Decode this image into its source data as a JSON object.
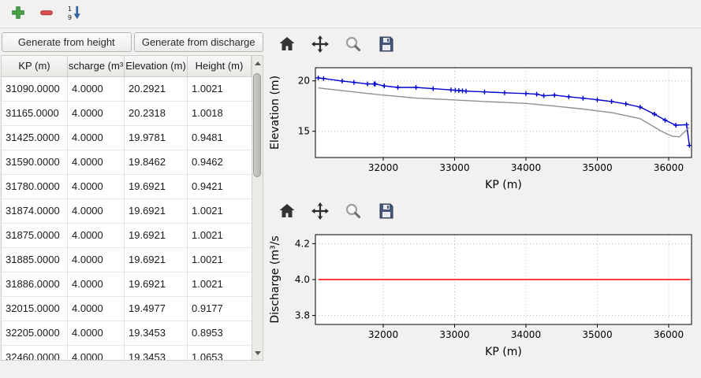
{
  "toolbar": {
    "add_icon": "plus-icon",
    "remove_icon": "minus-icon",
    "sort_icon": "sort-ascending-icon",
    "sort_digits": [
      "1",
      "9"
    ]
  },
  "buttons": {
    "generate_height": "Generate from height",
    "generate_discharge": "Generate from discharge"
  },
  "table": {
    "columns": [
      "KP (m)",
      "scharge (m³",
      "Elevation (m)",
      "Height (m)"
    ],
    "rows": [
      [
        "31090.0000",
        "4.0000",
        "20.2921",
        "1.0021"
      ],
      [
        "31165.0000",
        "4.0000",
        "20.2318",
        "1.0018"
      ],
      [
        "31425.0000",
        "4.0000",
        "19.9781",
        "0.9481"
      ],
      [
        "31590.0000",
        "4.0000",
        "19.8462",
        "0.9462"
      ],
      [
        "31780.0000",
        "4.0000",
        "19.6921",
        "0.9421"
      ],
      [
        "31874.0000",
        "4.0000",
        "19.6921",
        "1.0021"
      ],
      [
        "31875.0000",
        "4.0000",
        "19.6921",
        "1.0021"
      ],
      [
        "31885.0000",
        "4.0000",
        "19.6921",
        "1.0021"
      ],
      [
        "31886.0000",
        "4.0000",
        "19.6921",
        "1.0021"
      ],
      [
        "32015.0000",
        "4.0000",
        "19.4977",
        "0.9177"
      ],
      [
        "32205.0000",
        "4.0000",
        "19.3453",
        "0.8953"
      ],
      [
        "32460.0000",
        "4.0000",
        "19.3453",
        "1.0653"
      ]
    ]
  },
  "plot_toolbar": {
    "icons": [
      "home-icon",
      "pan-icon",
      "zoom-icon",
      "save-icon"
    ]
  },
  "chart_data": [
    {
      "type": "line",
      "title": "",
      "xlabel": "KP (m)",
      "ylabel": "Elevation (m)",
      "xlim": [
        31050,
        36320
      ],
      "ylim": [
        12.4,
        21.3
      ],
      "x_ticks": [
        32000,
        33000,
        34000,
        35000,
        36000
      ],
      "x_tick_labels": [
        "32000",
        "33000",
        "34000",
        "35000",
        "36000"
      ],
      "y_ticks": [
        15,
        20
      ],
      "y_tick_labels": [
        "15",
        "20"
      ],
      "grid": true,
      "legend": "none",
      "series": [
        {
          "name": "water-surface-elevation",
          "color": "#0000cc",
          "marker": "plus",
          "x": [
            31090,
            31165,
            31425,
            31590,
            31780,
            31874,
            31875,
            31885,
            31886,
            32015,
            32205,
            32460,
            32700,
            32950,
            33010,
            33060,
            33110,
            33160,
            33420,
            33700,
            34000,
            34150,
            34250,
            34400,
            34600,
            34800,
            35000,
            35200,
            35400,
            35600,
            35800,
            35950,
            36100,
            36250,
            36290
          ],
          "y": [
            20.29,
            20.23,
            19.98,
            19.85,
            19.69,
            19.69,
            19.69,
            19.69,
            19.69,
            19.5,
            19.35,
            19.35,
            19.22,
            19.1,
            19.07,
            19.04,
            19.01,
            18.98,
            18.9,
            18.82,
            18.74,
            18.68,
            18.52,
            18.58,
            18.42,
            18.28,
            18.12,
            17.95,
            17.72,
            17.4,
            16.7,
            16.1,
            15.6,
            15.65,
            13.6
          ]
        },
        {
          "name": "bed-elevation",
          "color": "#909090",
          "marker": "none",
          "x": [
            31090,
            31425,
            31780,
            32015,
            32460,
            32950,
            33420,
            34000,
            34400,
            34800,
            35200,
            35600,
            35900,
            36050,
            36150,
            36290
          ],
          "y": [
            19.29,
            19.03,
            18.75,
            18.58,
            18.29,
            18.12,
            17.95,
            17.76,
            17.5,
            17.2,
            16.85,
            16.25,
            15.0,
            14.5,
            14.45,
            15.4
          ]
        }
      ]
    },
    {
      "type": "line",
      "title": "",
      "xlabel": "KP (m)",
      "ylabel": "Discharge (m³/s",
      "xlim": [
        31050,
        36320
      ],
      "ylim": [
        3.75,
        4.25
      ],
      "x_ticks": [
        32000,
        33000,
        34000,
        35000,
        36000
      ],
      "x_tick_labels": [
        "32000",
        "33000",
        "34000",
        "35000",
        "36000"
      ],
      "y_ticks": [
        3.8,
        4.0,
        4.2
      ],
      "y_tick_labels": [
        "3.8",
        "4.0",
        "4.2"
      ],
      "grid": true,
      "legend": "none",
      "series": [
        {
          "name": "discharge",
          "color": "#ff0000",
          "marker": "none",
          "x": [
            31090,
            36300
          ],
          "y": [
            4.0,
            4.0
          ]
        }
      ]
    }
  ]
}
